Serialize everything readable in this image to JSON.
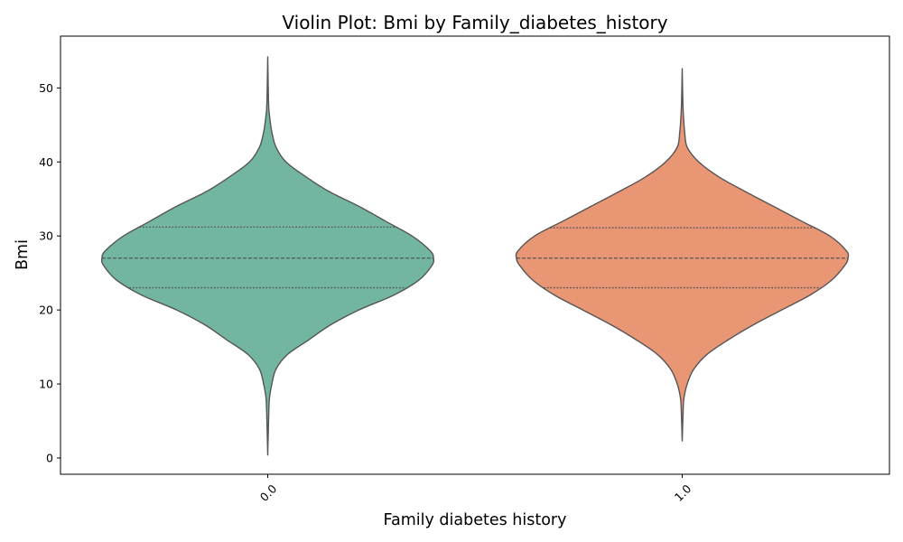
{
  "chart_data": {
    "type": "violin",
    "title": "Violin Plot: Bmi by Family_diabetes_history",
    "xlabel": "Family diabetes history",
    "ylabel": "Bmi",
    "ylim": [
      -2.2,
      57
    ],
    "yticks": [
      0,
      10,
      20,
      30,
      40,
      50
    ],
    "categories": [
      "0.0",
      "1.0"
    ],
    "colors": [
      "#72b6a1",
      "#e99675"
    ],
    "edge_color": "#555555",
    "grid": false,
    "legend": "none",
    "violins": [
      {
        "category": "0.0",
        "min": 0.4,
        "max": 54.2,
        "q1": 23.0,
        "median": 27.0,
        "q3": 31.2,
        "profile": [
          [
            0.4,
            0.0
          ],
          [
            5.0,
            0.005
          ],
          [
            8.0,
            0.01
          ],
          [
            10.0,
            0.025
          ],
          [
            12.0,
            0.05
          ],
          [
            14.0,
            0.12
          ],
          [
            16.0,
            0.25
          ],
          [
            18.0,
            0.38
          ],
          [
            20.0,
            0.55
          ],
          [
            22.0,
            0.76
          ],
          [
            24.0,
            0.91
          ],
          [
            26.0,
            0.99
          ],
          [
            27.0,
            1.0
          ],
          [
            28.0,
            0.98
          ],
          [
            30.0,
            0.87
          ],
          [
            32.0,
            0.71
          ],
          [
            34.0,
            0.55
          ],
          [
            36.0,
            0.37
          ],
          [
            38.0,
            0.23
          ],
          [
            40.0,
            0.11
          ],
          [
            42.0,
            0.05
          ],
          [
            44.0,
            0.025
          ],
          [
            46.0,
            0.012
          ],
          [
            48.0,
            0.005
          ],
          [
            54.2,
            0.0
          ]
        ]
      },
      {
        "category": "1.0",
        "min": 2.3,
        "max": 52.6,
        "q1": 23.0,
        "median": 27.0,
        "q3": 31.1,
        "profile": [
          [
            2.3,
            0.0
          ],
          [
            6.0,
            0.005
          ],
          [
            8.0,
            0.01
          ],
          [
            10.0,
            0.03
          ],
          [
            12.0,
            0.07
          ],
          [
            14.0,
            0.15
          ],
          [
            16.0,
            0.28
          ],
          [
            18.0,
            0.43
          ],
          [
            20.0,
            0.6
          ],
          [
            22.0,
            0.77
          ],
          [
            24.0,
            0.9
          ],
          [
            26.0,
            0.98
          ],
          [
            27.0,
            1.0
          ],
          [
            28.0,
            0.99
          ],
          [
            30.0,
            0.89
          ],
          [
            32.0,
            0.72
          ],
          [
            34.0,
            0.55
          ],
          [
            36.0,
            0.38
          ],
          [
            38.0,
            0.22
          ],
          [
            40.0,
            0.1
          ],
          [
            42.0,
            0.03
          ],
          [
            44.0,
            0.015
          ],
          [
            46.0,
            0.008
          ],
          [
            48.0,
            0.004
          ],
          [
            52.6,
            0.0
          ]
        ]
      }
    ]
  }
}
